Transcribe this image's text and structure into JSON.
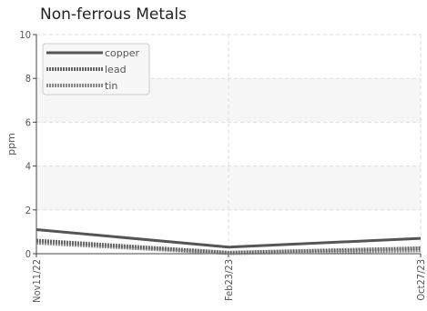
{
  "chart_data": {
    "type": "line",
    "title": "Non-ferrous Metals",
    "xlabel": "",
    "ylabel": "ppm",
    "categories": [
      "Nov11/22",
      "Feb23/23",
      "Oct27/23"
    ],
    "ylim": [
      0,
      10
    ],
    "yticks": [
      0,
      2,
      4,
      6,
      8,
      10
    ],
    "grid": true,
    "legend_position": "top-left",
    "series": [
      {
        "name": "copper",
        "values": [
          1.1,
          0.3,
          0.7
        ],
        "color": "#555555",
        "style": "solid"
      },
      {
        "name": "lead",
        "values": [
          0.6,
          0.05,
          0.25
        ],
        "color": "#666666",
        "style": "dotted"
      },
      {
        "name": "tin",
        "values": [
          0.5,
          0.02,
          0.15
        ],
        "color": "#888888",
        "style": "dotted"
      }
    ]
  }
}
